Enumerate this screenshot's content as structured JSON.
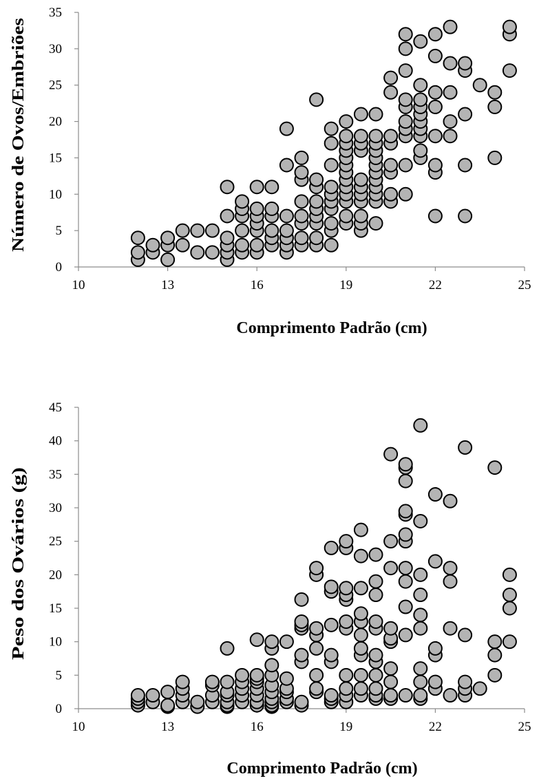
{
  "chart_data": [
    {
      "type": "scatter",
      "xlabel": "Comprimento Padrão (cm)",
      "ylabel": "Número de Ovos/Embriões",
      "xlim": [
        10,
        25
      ],
      "ylim": [
        0,
        35
      ],
      "xticks": [
        10,
        13,
        16,
        19,
        22,
        25
      ],
      "yticks": [
        0,
        5,
        10,
        15,
        20,
        25,
        30,
        35
      ],
      "grid": false,
      "marker_color": "#b4b4b4",
      "points": [
        [
          12,
          1
        ],
        [
          12,
          2
        ],
        [
          12,
          4
        ],
        [
          12.5,
          2
        ],
        [
          12.5,
          3
        ],
        [
          13,
          1
        ],
        [
          13,
          3
        ],
        [
          13,
          4
        ],
        [
          13.5,
          3
        ],
        [
          13.5,
          5
        ],
        [
          14,
          2
        ],
        [
          14,
          5
        ],
        [
          14.5,
          2
        ],
        [
          14.5,
          5
        ],
        [
          15,
          1
        ],
        [
          15,
          2
        ],
        [
          15,
          3
        ],
        [
          15,
          4
        ],
        [
          15,
          7
        ],
        [
          15,
          11
        ],
        [
          15.5,
          2
        ],
        [
          15.5,
          3
        ],
        [
          15.5,
          5
        ],
        [
          15.5,
          7
        ],
        [
          15.5,
          8
        ],
        [
          15.5,
          9
        ],
        [
          16,
          2
        ],
        [
          16,
          3
        ],
        [
          16,
          5
        ],
        [
          16,
          6
        ],
        [
          16,
          7
        ],
        [
          16,
          8
        ],
        [
          16,
          11
        ],
        [
          16.5,
          3
        ],
        [
          16.5,
          4
        ],
        [
          16.5,
          5
        ],
        [
          16.5,
          7
        ],
        [
          16.5,
          8
        ],
        [
          16.5,
          11
        ],
        [
          17,
          2
        ],
        [
          17,
          3
        ],
        [
          17,
          4
        ],
        [
          17,
          5
        ],
        [
          17,
          7
        ],
        [
          17,
          14
        ],
        [
          17,
          19
        ],
        [
          17.5,
          3
        ],
        [
          17.5,
          4
        ],
        [
          17.5,
          6
        ],
        [
          17.5,
          7
        ],
        [
          17.5,
          9
        ],
        [
          17.5,
          12
        ],
        [
          17.5,
          13
        ],
        [
          17.5,
          15
        ],
        [
          18,
          3
        ],
        [
          18,
          4
        ],
        [
          18,
          6
        ],
        [
          18,
          7
        ],
        [
          18,
          8
        ],
        [
          18,
          9
        ],
        [
          18,
          11
        ],
        [
          18,
          12
        ],
        [
          18,
          23
        ],
        [
          18.5,
          3
        ],
        [
          18.5,
          5
        ],
        [
          18.5,
          6
        ],
        [
          18.5,
          8
        ],
        [
          18.5,
          9
        ],
        [
          18.5,
          10
        ],
        [
          18.5,
          11
        ],
        [
          18.5,
          14
        ],
        [
          18.5,
          17
        ],
        [
          18.5,
          19
        ],
        [
          19,
          6
        ],
        [
          19,
          7
        ],
        [
          19,
          9
        ],
        [
          19,
          10
        ],
        [
          19,
          11
        ],
        [
          19,
          12
        ],
        [
          19,
          13
        ],
        [
          19,
          14
        ],
        [
          19,
          15
        ],
        [
          19,
          16
        ],
        [
          19,
          17
        ],
        [
          19,
          18
        ],
        [
          19,
          20
        ],
        [
          19.5,
          5
        ],
        [
          19.5,
          6
        ],
        [
          19.5,
          7
        ],
        [
          19.5,
          9
        ],
        [
          19.5,
          10
        ],
        [
          19.5,
          11
        ],
        [
          19.5,
          12
        ],
        [
          19.5,
          16
        ],
        [
          19.5,
          17
        ],
        [
          19.5,
          18
        ],
        [
          19.5,
          21
        ],
        [
          20,
          6
        ],
        [
          20,
          9
        ],
        [
          20,
          10
        ],
        [
          20,
          11
        ],
        [
          20,
          12
        ],
        [
          20,
          13
        ],
        [
          20,
          14
        ],
        [
          20,
          15
        ],
        [
          20,
          16
        ],
        [
          20,
          17
        ],
        [
          20,
          18
        ],
        [
          20,
          21
        ],
        [
          20.5,
          9
        ],
        [
          20.5,
          10
        ],
        [
          20.5,
          13
        ],
        [
          20.5,
          14
        ],
        [
          20.5,
          17
        ],
        [
          20.5,
          18
        ],
        [
          20.5,
          24
        ],
        [
          20.5,
          26
        ],
        [
          21,
          10
        ],
        [
          21,
          14
        ],
        [
          21,
          18
        ],
        [
          21,
          19
        ],
        [
          21,
          20
        ],
        [
          21,
          22
        ],
        [
          21,
          23
        ],
        [
          21,
          27
        ],
        [
          21,
          30
        ],
        [
          21,
          32
        ],
        [
          21.5,
          15
        ],
        [
          21.5,
          16
        ],
        [
          21.5,
          18
        ],
        [
          21.5,
          19
        ],
        [
          21.5,
          20
        ],
        [
          21.5,
          21
        ],
        [
          21.5,
          22
        ],
        [
          21.5,
          23
        ],
        [
          21.5,
          25
        ],
        [
          21.5,
          31
        ],
        [
          22,
          7
        ],
        [
          22,
          13
        ],
        [
          22,
          14
        ],
        [
          22,
          18
        ],
        [
          22,
          22
        ],
        [
          22,
          24
        ],
        [
          22,
          29
        ],
        [
          22,
          32
        ],
        [
          22.5,
          18
        ],
        [
          22.5,
          20
        ],
        [
          22.5,
          24
        ],
        [
          22.5,
          28
        ],
        [
          22.5,
          33
        ],
        [
          23,
          7
        ],
        [
          23,
          14
        ],
        [
          23,
          21
        ],
        [
          23,
          27
        ],
        [
          23,
          28
        ],
        [
          23.5,
          25
        ],
        [
          24,
          15
        ],
        [
          24,
          22
        ],
        [
          24,
          24
        ],
        [
          24.5,
          27
        ],
        [
          24.5,
          32
        ],
        [
          24.5,
          33
        ]
      ]
    },
    {
      "type": "scatter",
      "xlabel": "Comprimento Padrão (cm)",
      "ylabel": "Peso dos Ovários (g)",
      "xlim": [
        10,
        25
      ],
      "ylim": [
        0,
        45
      ],
      "xticks": [
        10,
        13,
        16,
        19,
        22,
        25
      ],
      "yticks": [
        0,
        5,
        10,
        15,
        20,
        25,
        30,
        35,
        40,
        45
      ],
      "grid": false,
      "marker_color": "#b4b4b4",
      "points": [
        [
          12,
          0.5
        ],
        [
          12,
          1
        ],
        [
          12,
          1.5
        ],
        [
          12,
          2
        ],
        [
          12.5,
          1
        ],
        [
          12.5,
          2
        ],
        [
          13,
          0.3
        ],
        [
          13,
          0.5
        ],
        [
          13,
          2.5
        ],
        [
          13.5,
          1
        ],
        [
          13.5,
          2
        ],
        [
          13.5,
          3
        ],
        [
          13.5,
          4
        ],
        [
          14,
          0.3
        ],
        [
          14,
          1
        ],
        [
          14.5,
          1
        ],
        [
          14.5,
          2
        ],
        [
          14.5,
          3.5
        ],
        [
          14.5,
          4
        ],
        [
          15,
          0.3
        ],
        [
          15,
          0.5
        ],
        [
          15,
          1
        ],
        [
          15,
          2
        ],
        [
          15,
          2.5
        ],
        [
          15,
          4
        ],
        [
          15,
          9
        ],
        [
          15.5,
          1
        ],
        [
          15.5,
          2
        ],
        [
          15.5,
          3
        ],
        [
          15.5,
          4
        ],
        [
          15.5,
          5
        ],
        [
          16,
          0.5
        ],
        [
          16,
          1
        ],
        [
          16,
          2
        ],
        [
          16,
          3
        ],
        [
          16,
          4
        ],
        [
          16,
          4.5
        ],
        [
          16,
          5
        ],
        [
          16,
          10.3
        ],
        [
          16.5,
          0.3
        ],
        [
          16.5,
          0.5
        ],
        [
          16.5,
          1
        ],
        [
          16.5,
          1.5
        ],
        [
          16.5,
          2.5
        ],
        [
          16.5,
          3.5
        ],
        [
          16.5,
          5
        ],
        [
          16.5,
          6.5
        ],
        [
          16.5,
          9
        ],
        [
          16.5,
          10
        ],
        [
          17,
          1
        ],
        [
          17,
          1.5
        ],
        [
          17,
          2.5
        ],
        [
          17,
          3
        ],
        [
          17,
          4.5
        ],
        [
          17,
          10
        ],
        [
          17.5,
          0.5
        ],
        [
          17.5,
          1
        ],
        [
          17.5,
          7
        ],
        [
          17.5,
          8
        ],
        [
          17.5,
          12
        ],
        [
          17.5,
          12.5
        ],
        [
          17.5,
          13
        ],
        [
          17.5,
          16.3
        ],
        [
          18,
          2.5
        ],
        [
          18,
          3
        ],
        [
          18,
          5
        ],
        [
          18,
          9
        ],
        [
          18,
          11
        ],
        [
          18,
          12
        ],
        [
          18,
          20
        ],
        [
          18,
          21
        ],
        [
          18.5,
          1
        ],
        [
          18.5,
          1.5
        ],
        [
          18.5,
          2
        ],
        [
          18.5,
          7
        ],
        [
          18.5,
          8
        ],
        [
          18.5,
          12.5
        ],
        [
          18.5,
          17.5
        ],
        [
          18.5,
          18.2
        ],
        [
          18.5,
          24
        ],
        [
          19,
          1
        ],
        [
          19,
          2
        ],
        [
          19,
          3
        ],
        [
          19,
          5
        ],
        [
          19,
          12
        ],
        [
          19,
          13
        ],
        [
          19,
          16.3
        ],
        [
          19,
          17
        ],
        [
          19,
          18
        ],
        [
          19,
          24
        ],
        [
          19,
          25
        ],
        [
          19.5,
          2
        ],
        [
          19.5,
          3
        ],
        [
          19.5,
          5
        ],
        [
          19.5,
          8
        ],
        [
          19.5,
          9
        ],
        [
          19.5,
          11
        ],
        [
          19.5,
          13
        ],
        [
          19.5,
          14.2
        ],
        [
          19.5,
          18
        ],
        [
          19.5,
          22.8
        ],
        [
          19.5,
          26.7
        ],
        [
          20,
          1.5
        ],
        [
          20,
          2
        ],
        [
          20,
          3
        ],
        [
          20,
          5
        ],
        [
          20,
          7
        ],
        [
          20,
          8
        ],
        [
          20,
          12
        ],
        [
          20,
          13
        ],
        [
          20,
          17
        ],
        [
          20,
          19
        ],
        [
          20,
          23
        ],
        [
          20.5,
          1.5
        ],
        [
          20.5,
          2
        ],
        [
          20.5,
          4
        ],
        [
          20.5,
          6
        ],
        [
          20.5,
          10
        ],
        [
          20.5,
          10.5
        ],
        [
          20.5,
          12
        ],
        [
          20.5,
          21
        ],
        [
          20.5,
          25
        ],
        [
          20.5,
          38
        ],
        [
          21,
          2
        ],
        [
          21,
          11
        ],
        [
          21,
          15.2
        ],
        [
          21,
          19
        ],
        [
          21,
          21
        ],
        [
          21,
          25
        ],
        [
          21,
          26
        ],
        [
          21,
          29
        ],
        [
          21,
          29.5
        ],
        [
          21,
          34
        ],
        [
          21,
          36
        ],
        [
          21,
          36.5
        ],
        [
          21.5,
          1.5
        ],
        [
          21.5,
          2
        ],
        [
          21.5,
          4
        ],
        [
          21.5,
          6
        ],
        [
          21.5,
          12
        ],
        [
          21.5,
          14
        ],
        [
          21.5,
          17
        ],
        [
          21.5,
          20
        ],
        [
          21.5,
          28
        ],
        [
          21.5,
          42.3
        ],
        [
          22,
          3
        ],
        [
          22,
          4
        ],
        [
          22,
          8
        ],
        [
          22,
          9
        ],
        [
          22,
          22
        ],
        [
          22,
          32
        ],
        [
          22.5,
          2
        ],
        [
          22.5,
          12
        ],
        [
          22.5,
          19
        ],
        [
          22.5,
          21
        ],
        [
          22.5,
          31
        ],
        [
          23,
          2
        ],
        [
          23,
          3
        ],
        [
          23,
          4
        ],
        [
          23,
          11
        ],
        [
          23,
          39
        ],
        [
          23.5,
          3
        ],
        [
          24,
          5
        ],
        [
          24,
          8
        ],
        [
          24,
          10
        ],
        [
          24,
          36
        ],
        [
          24.5,
          10
        ],
        [
          24.5,
          15
        ],
        [
          24.5,
          17
        ],
        [
          24.5,
          20
        ]
      ]
    }
  ]
}
